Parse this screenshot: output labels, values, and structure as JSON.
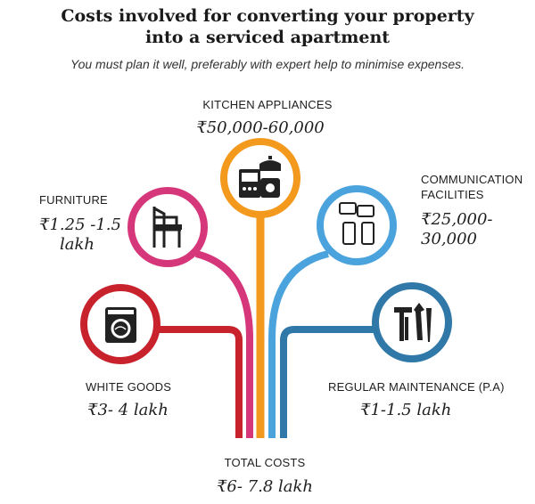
{
  "header": {
    "title_line1": "Costs involved for converting your property",
    "title_line2": "into a serviced apartment",
    "subtitle": "You must plan it well, preferably with expert help to minimise expenses."
  },
  "items": {
    "kitchen": {
      "label": "KITCHEN APPLIANCES",
      "value": "₹50,000-60,000",
      "color": "#f39a1e",
      "icon": "kitchen-appliances-icon"
    },
    "furniture": {
      "label": "FURNITURE",
      "value_line1": "₹1.25 -1.5",
      "value_line2": "lakh",
      "color": "#d6367a",
      "icon": "chair-icon"
    },
    "communication": {
      "label_line1": "COMMUNICATION",
      "label_line2": "FACILITIES",
      "value_line1": "₹25,000-",
      "value_line2": "30,000",
      "color": "#4aa3dc",
      "icon": "phones-chat-icon"
    },
    "white_goods": {
      "label": "WHITE GOODS",
      "value": "₹3- 4 lakh",
      "color": "#c8232d",
      "icon": "washing-machine-icon"
    },
    "maintenance": {
      "label": "REGULAR MAINTENANCE (P.A)",
      "value": "₹1-1.5 lakh",
      "color": "#2f78a8",
      "icon": "tools-icon"
    }
  },
  "total": {
    "label": "TOTAL COSTS",
    "value": "₹6- 7.8 lakh"
  }
}
